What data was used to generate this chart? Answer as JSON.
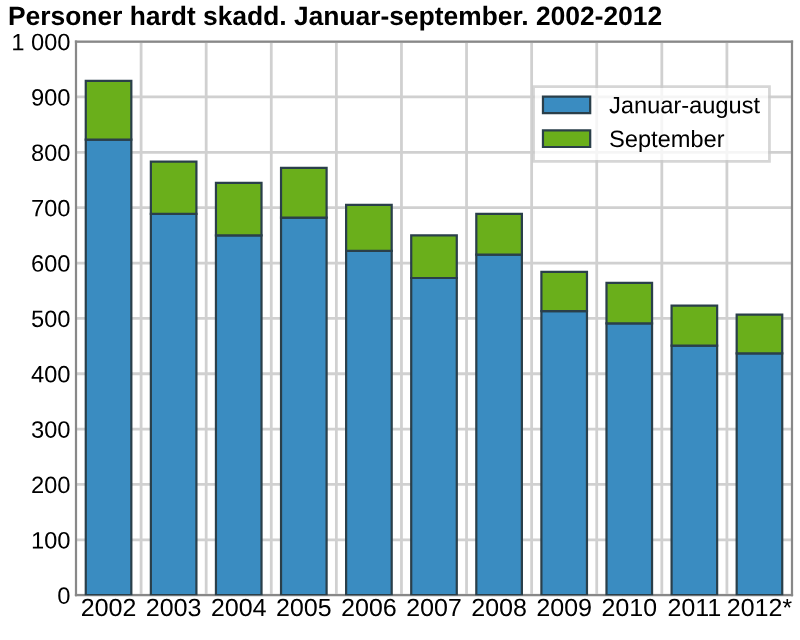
{
  "chart_data": {
    "type": "bar",
    "title": "Personer hardt skadd. Januar-september. 2002-2012",
    "categories": [
      "2002",
      "2003",
      "2004",
      "2005",
      "2006",
      "2007",
      "2008",
      "2009",
      "2010",
      "2011",
      "2012*"
    ],
    "stacked": true,
    "series": [
      {
        "name": "Januar-august",
        "color": "#3a8cc1",
        "values": [
          823,
          689,
          650,
          682,
          622,
          573,
          615,
          513,
          491,
          451,
          437
        ]
      },
      {
        "name": "September",
        "color": "#6aaf1b",
        "values": [
          106,
          94,
          95,
          90,
          83,
          77,
          74,
          71,
          73,
          72,
          70
        ]
      }
    ],
    "ylim": [
      0,
      1000
    ],
    "yticks": [
      0,
      100,
      200,
      300,
      400,
      500,
      600,
      700,
      800,
      900,
      {
        "value": 1000,
        "label": "1 000"
      }
    ],
    "grid": true,
    "legend": "top right"
  }
}
